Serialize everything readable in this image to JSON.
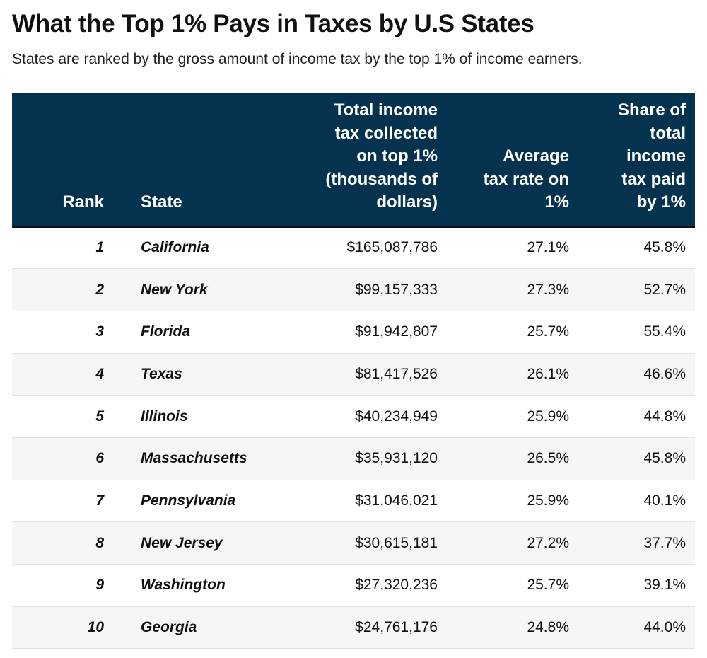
{
  "title": "What the Top 1% Pays in Taxes by U.S States",
  "subtitle": "States are ranked by the gross amount of income tax by the top 1% of income earners.",
  "chart_data": {
    "type": "table",
    "columns": [
      "Rank",
      "State",
      "Total income tax collected on top 1% (thousands of dollars)",
      "Average tax rate on 1%",
      "Share of total income tax paid by 1%"
    ],
    "header_lines": [
      [
        "Rank"
      ],
      [
        "State"
      ],
      [
        "Total income",
        "tax collected",
        "on top 1%",
        "(thousands of",
        "dollars)"
      ],
      [
        "Average",
        "tax rate on",
        "1%"
      ],
      [
        "Share of",
        "total",
        "income",
        "tax paid",
        "by 1%"
      ]
    ],
    "rows": [
      {
        "rank": "1",
        "state": "California",
        "total": "$165,087,786",
        "rate": "27.1%",
        "share": "45.8%"
      },
      {
        "rank": "2",
        "state": "New York",
        "total": "$99,157,333",
        "rate": "27.3%",
        "share": "52.7%"
      },
      {
        "rank": "3",
        "state": "Florida",
        "total": "$91,942,807",
        "rate": "25.7%",
        "share": "55.4%"
      },
      {
        "rank": "4",
        "state": "Texas",
        "total": "$81,417,526",
        "rate": "26.1%",
        "share": "46.6%"
      },
      {
        "rank": "5",
        "state": "Illinois",
        "total": "$40,234,949",
        "rate": "25.9%",
        "share": "44.8%"
      },
      {
        "rank": "6",
        "state": "Massachusetts",
        "total": "$35,931,120",
        "rate": "26.5%",
        "share": "45.8%"
      },
      {
        "rank": "7",
        "state": "Pennsylvania",
        "total": "$31,046,021",
        "rate": "25.9%",
        "share": "40.1%"
      },
      {
        "rank": "8",
        "state": "New Jersey",
        "total": "$30,615,181",
        "rate": "27.2%",
        "share": "37.7%"
      },
      {
        "rank": "9",
        "state": "Washington",
        "total": "$27,320,236",
        "rate": "25.7%",
        "share": "39.1%"
      },
      {
        "rank": "10",
        "state": "Georgia",
        "total": "$24,761,176",
        "rate": "24.8%",
        "share": "44.0%"
      }
    ]
  },
  "colors": {
    "header_bg": "#05334f",
    "header_text": "#ffffff",
    "row_alt_bg": "#f6f6f6"
  }
}
